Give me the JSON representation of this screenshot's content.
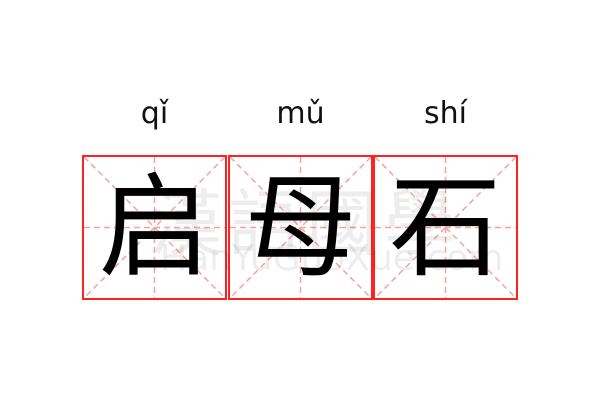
{
  "characters": [
    {
      "pinyin": "qǐ",
      "hanzi": "启"
    },
    {
      "pinyin": "mǔ",
      "hanzi": "母"
    },
    {
      "pinyin": "shí",
      "hanzi": "石"
    }
  ],
  "watermark": {
    "hanzi": "漢語國學",
    "site": "HanYuGuoXue.com"
  },
  "colors": {
    "grid_border": "#ff2222",
    "guide_lines": "#f8a0a0",
    "text": "#000000"
  }
}
